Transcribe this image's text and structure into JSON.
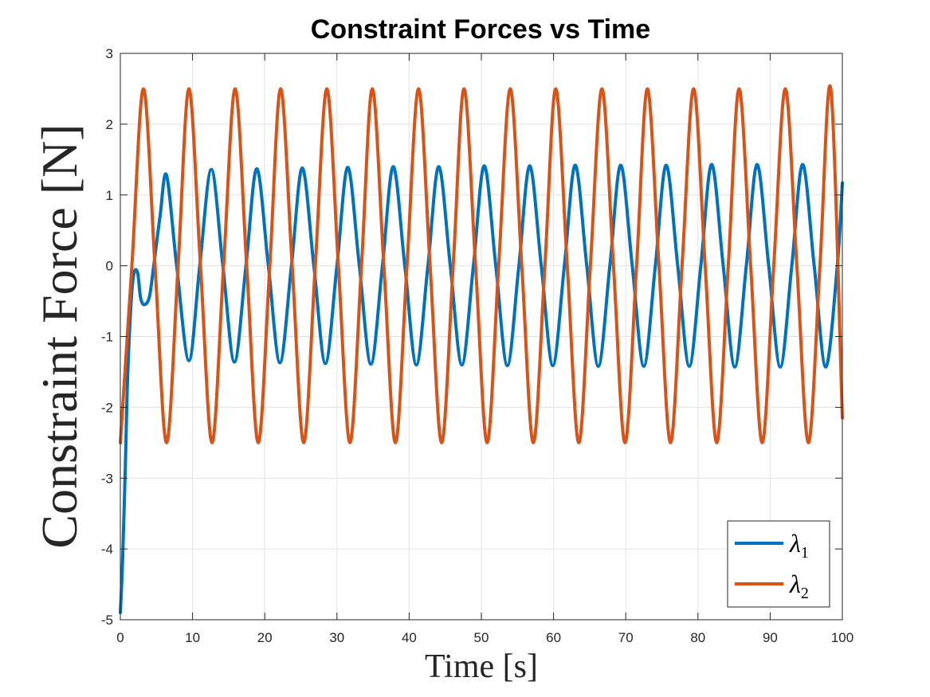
{
  "chart_data": {
    "type": "line",
    "title": "Constraint Forces vs Time",
    "xlabel": "Time [s]",
    "ylabel": "Constraint Force [N]",
    "xlim": [
      0,
      100
    ],
    "ylim": [
      -5,
      3
    ],
    "xticks": [
      "0",
      "10",
      "20",
      "30",
      "40",
      "50",
      "60",
      "70",
      "80",
      "90",
      "100"
    ],
    "yticks": [
      "3",
      "2",
      "1",
      "0",
      "-1",
      "-2",
      "-3",
      "-4",
      "-5"
    ],
    "grid": true,
    "legend_position": "bottom-right",
    "series": [
      {
        "name": "λ1",
        "legend_symbol": "λ",
        "legend_subscript": "1",
        "color": "#0072BD",
        "x": [
          0,
          0.3,
          0.7,
          1.0,
          1.5,
          1.9,
          2.4,
          2.8,
          3.3,
          4.0,
          4.5,
          5.5,
          6.4,
          7.8,
          9.5,
          11.0,
          12.6,
          14.2,
          15.8,
          17.4,
          18.9,
          20.5,
          22.1,
          23.7,
          25.2,
          26.8,
          28.4,
          30.0,
          31.5,
          33.1,
          34.7,
          36.3,
          37.8,
          39.4,
          41.0,
          42.6,
          44.1,
          45.7,
          47.3,
          48.9,
          50.4,
          52.0,
          53.6,
          55.2,
          56.7,
          58.3,
          59.9,
          61.5,
          63.0,
          64.6,
          66.2,
          67.8,
          69.3,
          70.9,
          72.5,
          74.1,
          75.6,
          77.2,
          78.8,
          80.4,
          81.9,
          83.5,
          85.1,
          86.7,
          88.2,
          89.8,
          91.4,
          93.0,
          94.5,
          96.1,
          97.7,
          99.3,
          100
        ],
        "y": [
          -4.9,
          -4.2,
          -2.8,
          -1.6,
          -0.5,
          -0.1,
          -0.1,
          -0.45,
          -0.55,
          -0.45,
          -0.1,
          0.7,
          1.28,
          0.0,
          -1.34,
          0.0,
          1.36,
          0.0,
          -1.36,
          0.0,
          1.37,
          0.0,
          -1.37,
          0.0,
          1.38,
          0.0,
          -1.38,
          0.0,
          1.39,
          0.0,
          -1.39,
          0.0,
          1.4,
          0.0,
          -1.4,
          0.0,
          1.4,
          0.0,
          -1.4,
          0.0,
          1.41,
          0.0,
          -1.41,
          0.0,
          1.41,
          0.0,
          -1.41,
          0.0,
          1.42,
          0.0,
          -1.42,
          0.0,
          1.42,
          0.0,
          -1.42,
          0.0,
          1.42,
          0.0,
          -1.42,
          0.0,
          1.43,
          0.0,
          -1.43,
          0.0,
          1.43,
          0.0,
          -1.43,
          0.0,
          1.43,
          0.0,
          -1.43,
          0.0,
          1.17
        ]
      },
      {
        "name": "λ2",
        "legend_symbol": "λ",
        "legend_subscript": "2",
        "color": "#D95319",
        "x": [
          0,
          1.6,
          3.2,
          4.8,
          6.4,
          8.0,
          9.5,
          11.1,
          12.7,
          14.3,
          15.9,
          17.5,
          19.1,
          20.7,
          22.2,
          23.8,
          25.4,
          27.0,
          28.6,
          30.2,
          31.8,
          33.4,
          34.9,
          36.5,
          38.1,
          39.7,
          41.3,
          42.9,
          44.5,
          46.1,
          47.6,
          49.2,
          50.8,
          52.4,
          54.0,
          55.6,
          57.2,
          58.8,
          60.3,
          61.9,
          63.5,
          65.1,
          66.7,
          68.3,
          69.9,
          71.5,
          73.0,
          74.6,
          76.2,
          77.8,
          79.4,
          81.0,
          82.6,
          84.2,
          85.7,
          87.3,
          88.9,
          90.5,
          92.1,
          93.7,
          95.3,
          96.9,
          98.4,
          100
        ],
        "y": [
          -2.5,
          0.0,
          2.5,
          0.0,
          -2.5,
          0.0,
          2.5,
          0.0,
          -2.5,
          0.0,
          2.5,
          0.0,
          -2.5,
          0.0,
          2.5,
          0.0,
          -2.5,
          0.0,
          2.5,
          0.0,
          -2.5,
          0.0,
          2.5,
          0.0,
          -2.5,
          0.0,
          2.5,
          0.0,
          -2.5,
          0.0,
          2.5,
          0.0,
          -2.5,
          0.0,
          2.5,
          0.0,
          -2.5,
          0.0,
          2.5,
          0.0,
          -2.5,
          0.0,
          2.5,
          0.0,
          -2.5,
          0.0,
          2.5,
          0.0,
          -2.5,
          0.0,
          2.5,
          0.0,
          -2.5,
          0.0,
          2.5,
          0.0,
          -2.5,
          0.0,
          2.5,
          0.0,
          -2.5,
          0.0,
          2.5,
          -2.15
        ]
      }
    ]
  }
}
